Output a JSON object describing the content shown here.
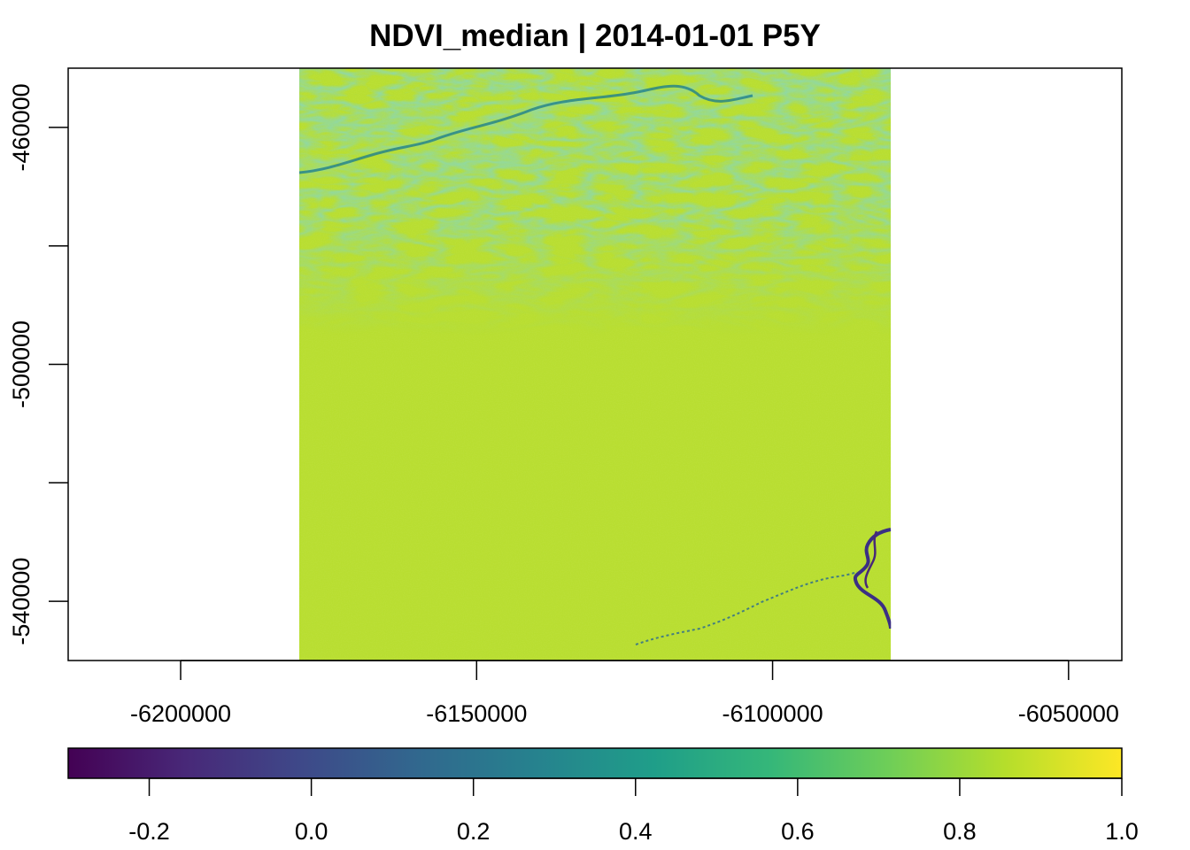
{
  "chart_data": {
    "type": "heatmap",
    "title": "NDVI_median | 2014-01-01 P5Y",
    "x_ticks": [
      {
        "value": -6200000,
        "label": "-6200000"
      },
      {
        "value": -6150000,
        "label": "-6150000"
      },
      {
        "value": -6100000,
        "label": "-6100000"
      },
      {
        "value": -6050000,
        "label": "-6050000"
      }
    ],
    "y_ticks": [
      {
        "value": -460000,
        "label": "-460000"
      },
      {
        "value": -480000,
        "label": ""
      },
      {
        "value": -500000,
        "label": "-500000"
      },
      {
        "value": -520000,
        "label": ""
      },
      {
        "value": -540000,
        "label": "-540000"
      }
    ],
    "xlim": [
      -6219000,
      -6041000
    ],
    "ylim": [
      -550000,
      -450000
    ],
    "raster_extent": {
      "x": [
        -6180000,
        -6080000
      ],
      "y": [
        -550000,
        -450000
      ]
    },
    "colorbar": {
      "range": [
        -0.3,
        1.0
      ],
      "ticks": [
        {
          "value": -0.2,
          "label": "-0.2"
        },
        {
          "value": 0.0,
          "label": "0.0"
        },
        {
          "value": 0.2,
          "label": "0.2"
        },
        {
          "value": 0.4,
          "label": "0.4"
        },
        {
          "value": 0.6,
          "label": "0.6"
        },
        {
          "value": 0.8,
          "label": "0.8"
        },
        {
          "value": 1.0,
          "label": "1.0"
        }
      ],
      "palette": [
        "#440154",
        "#482878",
        "#3e4989",
        "#31688e",
        "#26828e",
        "#1f9e89",
        "#35b779",
        "#6ece58",
        "#b5de2b",
        "#fde725"
      ],
      "palette_name": "viridis"
    },
    "background_value": 0.86,
    "grid": false,
    "legend_placement": "bottom"
  }
}
